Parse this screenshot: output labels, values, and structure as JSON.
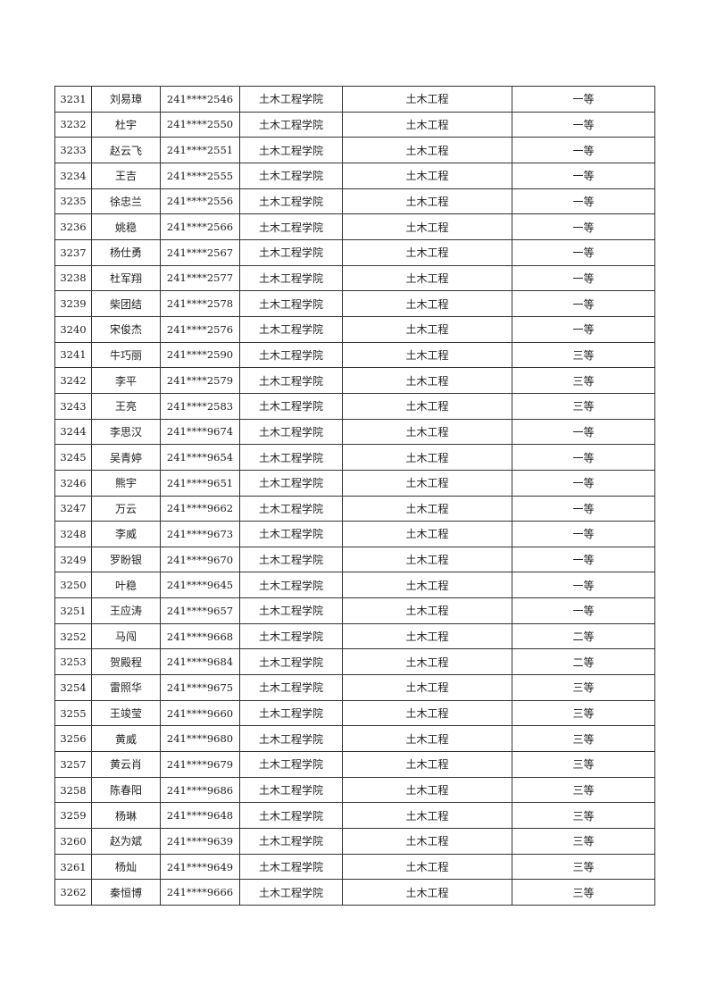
{
  "table": {
    "rows": [
      [
        "3231",
        "刘易璋",
        "241****2546",
        "土木工程学院",
        "土木工程",
        "一等"
      ],
      [
        "3232",
        "杜宇",
        "241****2550",
        "土木工程学院",
        "土木工程",
        "一等"
      ],
      [
        "3233",
        "赵云飞",
        "241****2551",
        "土木工程学院",
        "土木工程",
        "一等"
      ],
      [
        "3234",
        "王吉",
        "241****2555",
        "土木工程学院",
        "土木工程",
        "一等"
      ],
      [
        "3235",
        "徐忠兰",
        "241****2556",
        "土木工程学院",
        "土木工程",
        "一等"
      ],
      [
        "3236",
        "姚稳",
        "241****2566",
        "土木工程学院",
        "土木工程",
        "一等"
      ],
      [
        "3237",
        "杨仕勇",
        "241****2567",
        "土木工程学院",
        "土木工程",
        "一等"
      ],
      [
        "3238",
        "杜军翔",
        "241****2577",
        "土木工程学院",
        "土木工程",
        "一等"
      ],
      [
        "3239",
        "柴团结",
        "241****2578",
        "土木工程学院",
        "土木工程",
        "一等"
      ],
      [
        "3240",
        "宋俊杰",
        "241****2576",
        "土木工程学院",
        "土木工程",
        "一等"
      ],
      [
        "3241",
        "牛巧丽",
        "241****2590",
        "土木工程学院",
        "土木工程",
        "三等"
      ],
      [
        "3242",
        "李平",
        "241****2579",
        "土木工程学院",
        "土木工程",
        "三等"
      ],
      [
        "3243",
        "王亮",
        "241****2583",
        "土木工程学院",
        "土木工程",
        "三等"
      ],
      [
        "3244",
        "李思汉",
        "241****9674",
        "土木工程学院",
        "土木工程",
        "一等"
      ],
      [
        "3245",
        "吴青婷",
        "241****9654",
        "土木工程学院",
        "土木工程",
        "一等"
      ],
      [
        "3246",
        "熊宇",
        "241****9651",
        "土木工程学院",
        "土木工程",
        "一等"
      ],
      [
        "3247",
        "万云",
        "241****9662",
        "土木工程学院",
        "土木工程",
        "一等"
      ],
      [
        "3248",
        "李威",
        "241****9673",
        "土木工程学院",
        "土木工程",
        "一等"
      ],
      [
        "3249",
        "罗盼银",
        "241****9670",
        "土木工程学院",
        "土木工程",
        "一等"
      ],
      [
        "3250",
        "叶稳",
        "241****9645",
        "土木工程学院",
        "土木工程",
        "一等"
      ],
      [
        "3251",
        "王应涛",
        "241****9657",
        "土木工程学院",
        "土木工程",
        "一等"
      ],
      [
        "3252",
        "马闯",
        "241****9668",
        "土木工程学院",
        "土木工程",
        "二等"
      ],
      [
        "3253",
        "贺殿程",
        "241****9684",
        "土木工程学院",
        "土木工程",
        "二等"
      ],
      [
        "3254",
        "雷照华",
        "241****9675",
        "土木工程学院",
        "土木工程",
        "三等"
      ],
      [
        "3255",
        "王竣莹",
        "241****9660",
        "土木工程学院",
        "土木工程",
        "三等"
      ],
      [
        "3256",
        "黄威",
        "241****9680",
        "土木工程学院",
        "土木工程",
        "三等"
      ],
      [
        "3257",
        "黄云肖",
        "241****9679",
        "土木工程学院",
        "土木工程",
        "三等"
      ],
      [
        "3258",
        "陈春阳",
        "241****9686",
        "土木工程学院",
        "土木工程",
        "三等"
      ],
      [
        "3259",
        "杨琳",
        "241****9648",
        "土木工程学院",
        "土木工程",
        "三等"
      ],
      [
        "3260",
        "赵为斌",
        "241****9639",
        "土木工程学院",
        "土木工程",
        "三等"
      ],
      [
        "3261",
        "杨灿",
        "241****9649",
        "土木工程学院",
        "土木工程",
        "三等"
      ],
      [
        "3262",
        "秦恒博",
        "241****9666",
        "土木工程学院",
        "土木工程",
        "三等"
      ]
    ]
  }
}
